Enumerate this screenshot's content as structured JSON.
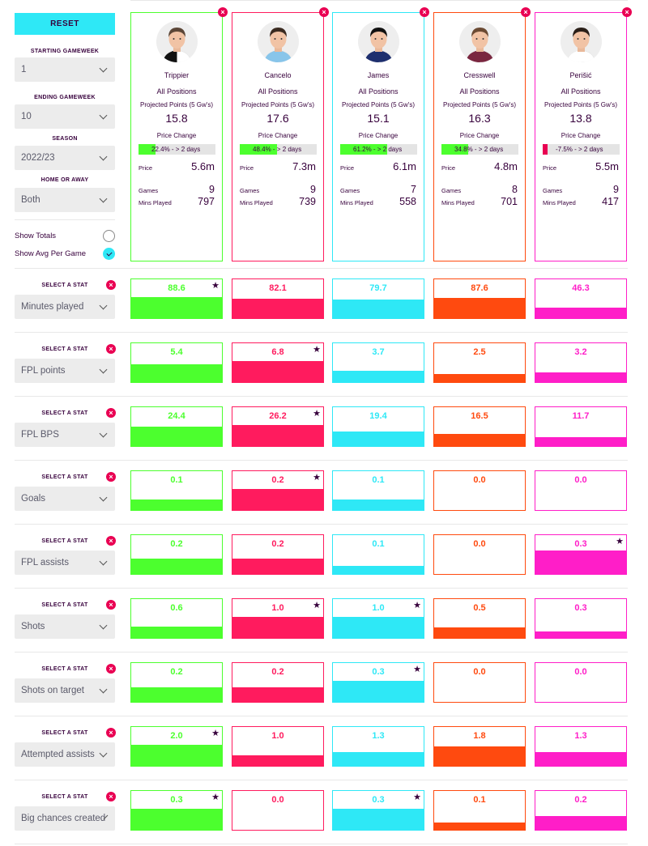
{
  "sidebar": {
    "reset_label": "RESET",
    "starting_gameweek": {
      "label": "STARTING GAMEWEEK",
      "value": "1"
    },
    "ending_gameweek": {
      "label": "ENDING GAMEWEEK",
      "value": "10"
    },
    "season": {
      "label": "SEASON",
      "value": "2022/23"
    },
    "home_away": {
      "label": "HOME OR AWAY",
      "value": "Both"
    },
    "show_totals": {
      "label": "Show Totals",
      "checked": false
    },
    "show_avg": {
      "label": "Show Avg Per Game",
      "checked": true
    }
  },
  "card_labels": {
    "position": "All Positions",
    "projected": "Projected Points (5 Gw's)",
    "price_change": "Price Change",
    "price": "Price",
    "games": "Games",
    "mins_played": "Mins Played"
  },
  "players": [
    {
      "name": "Trippier",
      "color": "#4cff2e",
      "projected": "15.8",
      "price_change_text": "22.4% - > 2 days",
      "price_change_pct": 22.4,
      "price": "5.6m",
      "games": "9",
      "mins": "797",
      "shirt": "#ffffff",
      "shirt2": "#111111",
      "hair": "#5b4637"
    },
    {
      "name": "Cancelo",
      "color": "#ff1b5e",
      "projected": "17.6",
      "price_change_text": "48.4% - > 2 days",
      "price_change_pct": 48.4,
      "price": "7.3m",
      "games": "9",
      "mins": "739",
      "shirt": "#88c5ea",
      "shirt2": "#88c5ea",
      "hair": "#3a2a20"
    },
    {
      "name": "James",
      "color": "#2ee8f6",
      "projected": "15.1",
      "price_change_text": "61.2% - > 2 days",
      "price_change_pct": 61.2,
      "price": "6.1m",
      "games": "7",
      "mins": "558",
      "shirt": "#1e2f6e",
      "shirt2": "#1e2f6e",
      "hair": "#111111"
    },
    {
      "name": "Cresswell",
      "color": "#ff4a0f",
      "projected": "16.3",
      "price_change_text": "34.8% - > 2 days",
      "price_change_pct": 34.8,
      "price": "4.8m",
      "games": "8",
      "mins": "701",
      "shirt": "#7a2740",
      "shirt2": "#7a2740",
      "hair": "#6b4a33"
    },
    {
      "name": "Perišić",
      "color": "#ff1ec8",
      "projected": "13.8",
      "price_change_text": "-7.5% - > 2 days",
      "price_change_pct": -7.5,
      "price": "5.5m",
      "games": "9",
      "mins": "417",
      "shirt": "#ffffff",
      "shirt2": "#ffffff",
      "hair": "#2a1f18"
    }
  ],
  "stats": {
    "select_label": "SELECT A STAT",
    "rows": [
      {
        "stat": "Minutes played",
        "values": [
          "88.6",
          "82.1",
          "79.7",
          "87.6",
          "46.3"
        ],
        "fills": [
          0.55,
          0.5,
          0.48,
          0.53,
          0.28
        ],
        "star": 0
      },
      {
        "stat": "FPL points",
        "values": [
          "5.4",
          "6.8",
          "3.7",
          "2.5",
          "3.2"
        ],
        "fills": [
          0.45,
          0.55,
          0.3,
          0.2,
          0.26
        ],
        "star": 1
      },
      {
        "stat": "FPL BPS",
        "values": [
          "24.4",
          "26.2",
          "19.4",
          "16.5",
          "11.7"
        ],
        "fills": [
          0.5,
          0.55,
          0.38,
          0.32,
          0.23
        ],
        "star": 1
      },
      {
        "stat": "Goals",
        "values": [
          "0.1",
          "0.2",
          "0.1",
          "0.0",
          "0.0"
        ],
        "fills": [
          0.28,
          0.55,
          0.28,
          0,
          0
        ],
        "star": 1
      },
      {
        "stat": "FPL assists",
        "values": [
          "0.2",
          "0.2",
          "0.1",
          "0.0",
          "0.3"
        ],
        "fills": [
          0.4,
          0.4,
          0.2,
          0,
          0.6
        ],
        "star": 4
      },
      {
        "stat": "Shots",
        "values": [
          "0.6",
          "1.0",
          "1.0",
          "0.5",
          "0.3"
        ],
        "fills": [
          0.3,
          0.55,
          0.55,
          0.27,
          0.16
        ],
        "star": [
          1,
          2
        ]
      },
      {
        "stat": "Shots on target",
        "values": [
          "0.2",
          "0.2",
          "0.3",
          "0.0",
          "0.0"
        ],
        "fills": [
          0.37,
          0.37,
          0.55,
          0,
          0
        ],
        "star": 2
      },
      {
        "stat": "Attempted assists",
        "values": [
          "2.0",
          "1.0",
          "1.3",
          "1.8",
          "1.3"
        ],
        "fills": [
          0.55,
          0.28,
          0.36,
          0.5,
          0.36
        ],
        "star": 0
      },
      {
        "stat": "Big chances created",
        "values": [
          "0.3",
          "0.0",
          "0.3",
          "0.1",
          "0.2"
        ],
        "fills": [
          0.55,
          0,
          0.55,
          0.18,
          0.36
        ],
        "star": [
          0,
          2
        ]
      }
    ]
  }
}
